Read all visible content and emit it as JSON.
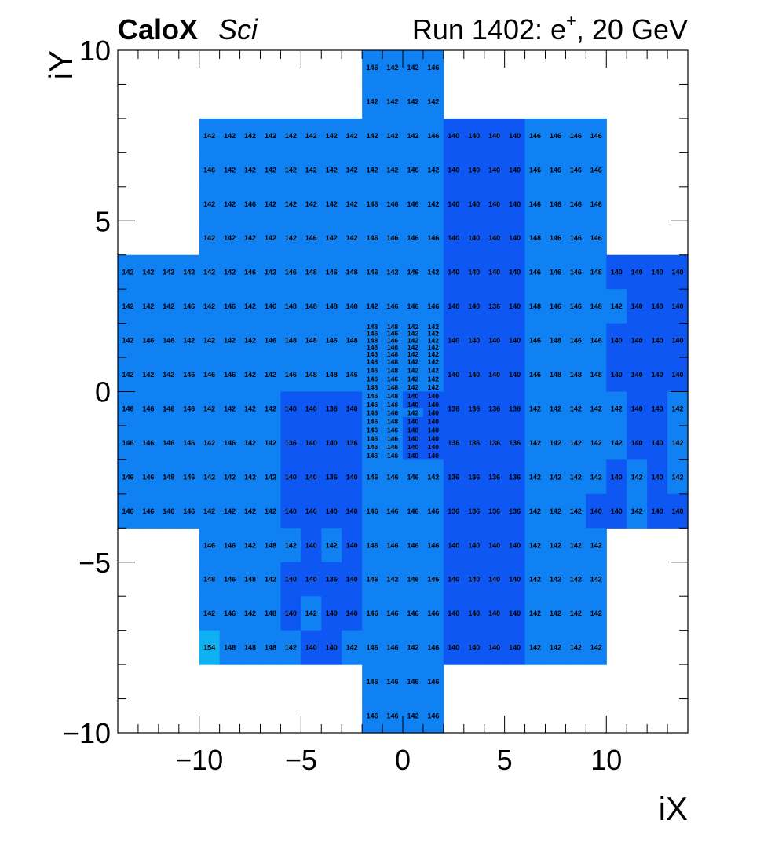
{
  "header": {
    "experiment": "CaloX",
    "subtitle": "Sci",
    "run_prefix": "Run 1402: e",
    "run_sup": "+",
    "run_suffix": ", 20 GeV"
  },
  "chart_data": {
    "type": "heatmap",
    "xlabel": "iX",
    "ylabel": "iY",
    "xlim": [
      -14,
      14
    ],
    "ylim": [
      -10,
      10
    ],
    "x_ticks": [
      -10,
      -5,
      0,
      5,
      10
    ],
    "y_ticks": [
      -10,
      -5,
      0,
      5,
      10
    ],
    "colors": {
      "136": "#0f57f2",
      "140": "#0f57f2",
      "142": "#0f81f2",
      "146": "#0f81f2",
      "148": "#0f81f2",
      "154": "#0fb0f2"
    },
    "blocks": [
      {
        "rows": [
          [
            146,
            142,
            142,
            146
          ]
        ],
        "x0": -2,
        "x1": 2,
        "y0": 9,
        "y1": 10
      },
      {
        "rows": [
          [
            142,
            142,
            142,
            142
          ]
        ],
        "x0": -2,
        "x1": 2,
        "y0": 8,
        "y1": 9
      },
      {
        "rows": [
          [
            142,
            142,
            142,
            142,
            142,
            142,
            142,
            142,
            142,
            142,
            142,
            146,
            140,
            140,
            140,
            140,
            146,
            146,
            146,
            146
          ]
        ],
        "x0": -10,
        "x1": 10,
        "y0": 7,
        "y1": 8
      },
      {
        "rows": [
          [
            146,
            142,
            142,
            142,
            142,
            142,
            142,
            142,
            142,
            142,
            146,
            142,
            140,
            140,
            140,
            140,
            146,
            146,
            146,
            146
          ]
        ],
        "x0": -10,
        "x1": 10,
        "y0": 6,
        "y1": 7
      },
      {
        "rows": [
          [
            142,
            142,
            146,
            142,
            142,
            142,
            142,
            142,
            146,
            146,
            146,
            142,
            140,
            140,
            140,
            140,
            146,
            146,
            146,
            146
          ]
        ],
        "x0": -10,
        "x1": 10,
        "y0": 5,
        "y1": 6
      },
      {
        "rows": [
          [
            142,
            142,
            142,
            142,
            142,
            146,
            142,
            142,
            146,
            146,
            146,
            146,
            140,
            140,
            140,
            140,
            148,
            146,
            146,
            146
          ]
        ],
        "x0": -10,
        "x1": 10,
        "y0": 4,
        "y1": 5
      },
      {
        "rows": [
          [
            142,
            142,
            142,
            142,
            142,
            142,
            146,
            142,
            146,
            148,
            146,
            148,
            146,
            142,
            146,
            142,
            140,
            140,
            140,
            140,
            146,
            146,
            146,
            148,
            140,
            140,
            140,
            140
          ]
        ],
        "x0": -14,
        "x1": 14,
        "y0": 3,
        "y1": 4
      },
      {
        "rows": [
          [
            142,
            142,
            142,
            146,
            142,
            146,
            142,
            146,
            148,
            148,
            148,
            148,
            142,
            146,
            146,
            146,
            140,
            140,
            136,
            140,
            148,
            146,
            146,
            148,
            142,
            140,
            140,
            140
          ]
        ],
        "x0": -14,
        "x1": 14,
        "y0": 2,
        "y1": 3
      },
      {
        "rows": [
          [
            142,
            146,
            146,
            142,
            142,
            142,
            142,
            146,
            148,
            148,
            146,
            148
          ]
        ],
        "x0": -14,
        "x1": -2,
        "y0": 1,
        "y1": 2
      },
      {
        "rows": [
          [
            142,
            142,
            142,
            146,
            146,
            146,
            142,
            142,
            146,
            148,
            148,
            146
          ]
        ],
        "x0": -14,
        "x1": -2,
        "y0": 0,
        "y1": 1
      },
      {
        "rows": [
          [
            148,
            148,
            142,
            142
          ],
          [
            146,
            146,
            142,
            142
          ],
          [
            148,
            146,
            142,
            142
          ],
          [
            146,
            146,
            142,
            142
          ],
          [
            146,
            148,
            142,
            142
          ]
        ],
        "x0": -2,
        "x1": 2,
        "y0": 1,
        "y1": 2
      },
      {
        "rows": [
          [
            148,
            148,
            142,
            142
          ],
          [
            146,
            148,
            142,
            142
          ],
          [
            146,
            146,
            142,
            142
          ],
          [
            148,
            148,
            142,
            142
          ]
        ],
        "x0": -2,
        "x1": 2,
        "y0": 0,
        "y1": 1
      },
      {
        "rows": [
          [
            140,
            140,
            140,
            140,
            146,
            148,
            146,
            146,
            140,
            140,
            140,
            140
          ]
        ],
        "x0": 2,
        "x1": 14,
        "y0": 1,
        "y1": 2
      },
      {
        "rows": [
          [
            140,
            140,
            140,
            140,
            146,
            148,
            148,
            148,
            140,
            140,
            140,
            140
          ]
        ],
        "x0": 2,
        "x1": 14,
        "y0": 0,
        "y1": 1
      },
      {
        "rows": [
          [
            146,
            146,
            146,
            146,
            142,
            142,
            142,
            142,
            140,
            140,
            136,
            140
          ]
        ],
        "x0": -14,
        "x1": -2,
        "y0": -1,
        "y1": 0
      },
      {
        "rows": [
          [
            146,
            146,
            146,
            146,
            142,
            146,
            142,
            142,
            136,
            140,
            140,
            136
          ]
        ],
        "x0": -14,
        "x1": -2,
        "y0": -2,
        "y1": -1
      },
      {
        "rows": [
          [
            146,
            148,
            140,
            140
          ],
          [
            146,
            146,
            140,
            140
          ],
          [
            146,
            146,
            142,
            140
          ],
          [
            146,
            148,
            140,
            140
          ]
        ],
        "x0": -2,
        "x1": 2,
        "y0": -1,
        "y1": 0
      },
      {
        "rows": [
          [
            146,
            146,
            140,
            140
          ],
          [
            146,
            146,
            140,
            140
          ],
          [
            146,
            146,
            140,
            140
          ],
          [
            146,
            146,
            140,
            140
          ]
        ],
        "x0": -2,
        "x1": 2,
        "y0": -2,
        "y1": -1
      },
      {
        "rows": [
          [
            136,
            136,
            136,
            136,
            142,
            142,
            142,
            142,
            142,
            140,
            140,
            142
          ]
        ],
        "x0": 2,
        "x1": 14,
        "y0": -1,
        "y1": 0
      },
      {
        "rows": [
          [
            136,
            136,
            136,
            136,
            142,
            142,
            142,
            142,
            142,
            140,
            140,
            142
          ]
        ],
        "x0": 2,
        "x1": 14,
        "y0": -2,
        "y1": -1
      },
      {
        "rows": [
          [
            146,
            146,
            148,
            146,
            142,
            142,
            142,
            142,
            140,
            140,
            136,
            140,
            146,
            146,
            146,
            142,
            136,
            136,
            136,
            136,
            142,
            142,
            142,
            142,
            140,
            142,
            140,
            142
          ]
        ],
        "x0": -14,
        "x1": 14,
        "y0": -3,
        "y1": -2
      },
      {
        "rows": [
          [
            146,
            146,
            146,
            146,
            142,
            142,
            142,
            142,
            140,
            140,
            140,
            140,
            146,
            146,
            146,
            146,
            136,
            136,
            136,
            136,
            142,
            142,
            142,
            140,
            140,
            142,
            140,
            140
          ]
        ],
        "x0": -14,
        "x1": 14,
        "y0": -4,
        "y1": -3
      },
      {
        "rows": [
          [
            146,
            146,
            142,
            148,
            142,
            140,
            142,
            140,
            146,
            146,
            146,
            146,
            140,
            140,
            140,
            140,
            142,
            142,
            142,
            142
          ]
        ],
        "x0": -10,
        "x1": 10,
        "y0": -5,
        "y1": -4
      },
      {
        "rows": [
          [
            148,
            146,
            148,
            142,
            140,
            140,
            136,
            140,
            146,
            142,
            146,
            146,
            140,
            140,
            140,
            140,
            142,
            142,
            142,
            142
          ]
        ],
        "x0": -10,
        "x1": 10,
        "y0": -6,
        "y1": -5
      },
      {
        "rows": [
          [
            142,
            146,
            142,
            148,
            140,
            142,
            140,
            140,
            146,
            146,
            146,
            146,
            140,
            140,
            140,
            140,
            142,
            142,
            142,
            142
          ]
        ],
        "x0": -10,
        "x1": 10,
        "y0": -7,
        "y1": -6
      },
      {
        "rows": [
          [
            154,
            148,
            148,
            148,
            142,
            140,
            140,
            142,
            146,
            146,
            142,
            146,
            140,
            140,
            140,
            140,
            142,
            142,
            142,
            142
          ]
        ],
        "x0": -10,
        "x1": 10,
        "y0": -8,
        "y1": -7
      },
      {
        "rows": [
          [
            146,
            146,
            146,
            146
          ]
        ],
        "x0": -2,
        "x1": 2,
        "y0": -9,
        "y1": -8
      },
      {
        "rows": [
          [
            146,
            146,
            142,
            146
          ]
        ],
        "x0": -2,
        "x1": 2,
        "y0": -10,
        "y1": -9
      }
    ]
  }
}
